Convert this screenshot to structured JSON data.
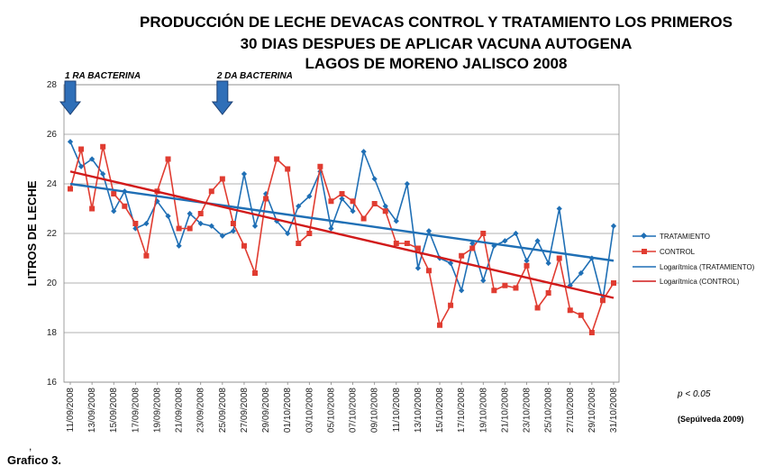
{
  "caption": "Grafico 3.",
  "caption_mark": ",",
  "chart_data": {
    "type": "line",
    "title_lines": [
      "PRODUCCIÓN DE LECHE DEVACAS CONTROL Y TRATAMIENTO LOS PRIMEROS",
      "30 DIAS DESPUES DE APLICAR VACUNA AUTOGENA",
      "LAGOS DE MORENO JALISCO 2008"
    ],
    "ylabel": "LITROS DE LECHE",
    "xlabel": "",
    "ylim": [
      16,
      28
    ],
    "y_ticks": [
      "16",
      "18",
      "20",
      "22",
      "24",
      "26",
      "28"
    ],
    "grid": true,
    "x_tick_labels": [
      "11/09/2008",
      "13/09/2008",
      "15/09/2008",
      "17/09/2008",
      "19/09/2008",
      "21/09/2008",
      "23/09/2008",
      "25/09/2008",
      "27/09/2008",
      "29/09/2008",
      "01/10/2008",
      "03/10/2008",
      "05/10/2008",
      "07/10/2008",
      "09/10/2008",
      "11/10/2008",
      "13/10/2008",
      "15/10/2008",
      "17/10/2008",
      "19/10/2008",
      "21/10/2008",
      "23/10/2008",
      "25/10/2008",
      "27/10/2008",
      "29/10/2008",
      "31/10/2008"
    ],
    "series": [
      {
        "name": "TRATAMIENTO",
        "color": "#1F6FB5",
        "marker": "diamond",
        "values": [
          25.7,
          24.7,
          25.0,
          24.4,
          22.9,
          23.7,
          22.2,
          22.4,
          23.3,
          22.7,
          21.5,
          22.8,
          22.4,
          22.3,
          21.9,
          22.1,
          24.4,
          22.3,
          23.6,
          22.5,
          22.0,
          23.1,
          23.5,
          24.5,
          22.2,
          23.4,
          22.9,
          25.3,
          24.2,
          23.1,
          22.5,
          24.0,
          20.6,
          22.1,
          21.0,
          20.8,
          19.7,
          21.6,
          20.1,
          21.5,
          21.7,
          22.0,
          20.9,
          21.7,
          20.8,
          23.0,
          19.9,
          20.4,
          21.0,
          19.3,
          22.3
        ]
      },
      {
        "name": "CONTROL",
        "color": "#E03C31",
        "marker": "square",
        "values": [
          23.8,
          25.4,
          23.0,
          25.5,
          23.6,
          23.1,
          22.4,
          21.1,
          23.7,
          25.0,
          22.2,
          22.2,
          22.8,
          23.7,
          24.2,
          22.4,
          21.5,
          20.4,
          23.4,
          25.0,
          24.6,
          21.6,
          22.0,
          24.7,
          23.3,
          23.6,
          23.3,
          22.6,
          23.2,
          22.9,
          21.6,
          21.6,
          21.4,
          20.5,
          18.3,
          19.1,
          21.1,
          21.4,
          22.0,
          19.7,
          19.9,
          19.8,
          20.7,
          19.0,
          19.6,
          21.0,
          18.9,
          18.7,
          18.0,
          19.3,
          20.0
        ]
      },
      {
        "name": "Logarítmica (TRATAMIENTO)",
        "color": "#1F6FB5",
        "trend": true,
        "values": [
          24.0,
          20.9
        ]
      },
      {
        "name": "Logarítmica (CONTROL)",
        "color": "#D11A1A",
        "trend": true,
        "values": [
          24.5,
          19.4
        ]
      }
    ],
    "annotations": [
      {
        "text": "1 RA BACTERINA",
        "x_index": 0
      },
      {
        "text": "2 DA BACTERINA",
        "x_index": 14
      }
    ],
    "notes": [
      "p < 0.05",
      "(Sepúlveda 2009)"
    ]
  }
}
